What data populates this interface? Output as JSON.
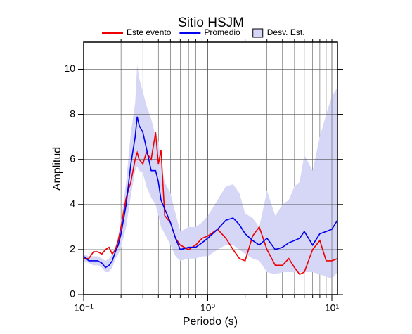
{
  "chart_data": {
    "type": "line",
    "title": "Sitio HSJM",
    "x_label": "Periodo (s)",
    "y_label": "Amplitud",
    "x_log": true,
    "grid": true,
    "legend": "top",
    "xlim": [
      0.1,
      11.1
    ],
    "ylim": [
      0,
      11.2
    ],
    "xticks": [
      {
        "value": 0.1,
        "label": "10⁻¹"
      },
      {
        "value": 1,
        "label": "10⁰"
      },
      {
        "value": 10,
        "label": "10¹"
      }
    ],
    "yticks": [
      0,
      2,
      4,
      6,
      8,
      10
    ],
    "x": [
      0.1,
      0.11,
      0.12,
      0.13,
      0.14,
      0.15,
      0.16,
      0.17,
      0.18,
      0.19,
      0.2,
      0.22,
      0.24,
      0.26,
      0.27,
      0.28,
      0.3,
      0.32,
      0.35,
      0.38,
      0.4,
      0.42,
      0.45,
      0.5,
      0.55,
      0.6,
      0.7,
      0.8,
      0.9,
      1.0,
      1.2,
      1.4,
      1.6,
      1.8,
      2.0,
      2.3,
      2.6,
      3.0,
      3.5,
      4.0,
      4.5,
      5.0,
      5.5,
      6.0,
      7.0,
      8.0,
      9.0,
      10.0,
      11.1
    ],
    "band": {
      "name": "Desv. Est.",
      "color": "#d6d6f7",
      "upper": [
        1.8,
        1.7,
        1.7,
        1.7,
        1.6,
        1.5,
        1.6,
        1.8,
        2.1,
        2.6,
        3.3,
        5.0,
        7.2,
        8.5,
        10.2,
        9.6,
        9.0,
        8.4,
        7.8,
        7.0,
        6.8,
        5.8,
        5.0,
        4.5,
        3.6,
        2.8,
        3.0,
        3.0,
        3.2,
        3.5,
        4.2,
        4.8,
        4.9,
        4.5,
        3.6,
        3.4,
        3.0,
        4.6,
        3.5,
        4.0,
        4.2,
        4.8,
        5.0,
        6.2,
        5.5,
        7.0,
        8.0,
        8.8,
        9.2
      ],
      "lower": [
        1.5,
        1.4,
        1.3,
        1.3,
        1.2,
        1.0,
        1.0,
        1.2,
        1.6,
        1.8,
        2.1,
        3.0,
        4.4,
        5.5,
        5.7,
        5.5,
        5.4,
        4.8,
        4.3,
        4.0,
        3.5,
        3.0,
        2.7,
        2.2,
        1.7,
        1.5,
        1.6,
        1.6,
        1.7,
        1.7,
        2.0,
        2.2,
        2.2,
        2.0,
        1.8,
        1.6,
        1.5,
        1.0,
        0.9,
        1.0,
        1.0,
        1.0,
        1.0,
        1.0,
        1.0,
        0.9,
        0.8,
        0.7,
        1.0
      ]
    },
    "series": [
      {
        "name": "Este evento",
        "color": "#ee0000",
        "values": [
          1.6,
          1.6,
          1.9,
          1.9,
          1.8,
          2.0,
          2.1,
          1.8,
          2.0,
          2.4,
          3.0,
          4.3,
          5.0,
          6.0,
          6.3,
          6.0,
          5.8,
          6.3,
          6.0,
          7.2,
          5.8,
          6.4,
          3.5,
          3.2,
          2.5,
          2.2,
          2.0,
          2.2,
          2.5,
          2.6,
          2.9,
          2.5,
          2.0,
          1.6,
          1.5,
          2.6,
          3.0,
          2.0,
          1.3,
          1.3,
          1.6,
          1.2,
          0.9,
          1.0,
          2.0,
          2.4,
          1.5,
          1.5,
          1.6
        ]
      },
      {
        "name": "Promedio",
        "color": "#0000ee",
        "values": [
          1.7,
          1.5,
          1.5,
          1.5,
          1.4,
          1.2,
          1.3,
          1.5,
          1.9,
          2.2,
          2.7,
          4.0,
          5.8,
          7.0,
          7.9,
          7.5,
          7.2,
          6.5,
          5.5,
          5.5,
          5.0,
          4.2,
          3.8,
          3.2,
          2.5,
          2.0,
          2.1,
          2.1,
          2.3,
          2.5,
          2.9,
          3.3,
          3.4,
          3.1,
          2.7,
          2.4,
          2.2,
          2.5,
          2.0,
          2.1,
          2.3,
          2.4,
          2.5,
          2.8,
          2.2,
          2.7,
          2.8,
          2.9,
          3.3
        ]
      }
    ]
  }
}
